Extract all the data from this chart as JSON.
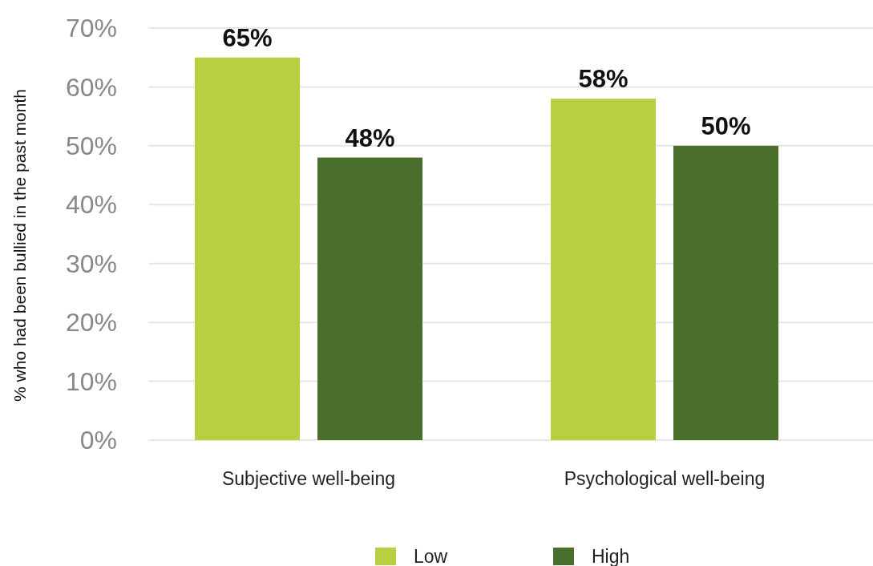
{
  "chart_data": {
    "type": "bar",
    "ylabel": "% who had been bullied in the past month",
    "categories": [
      "Subjective well-being",
      "Psychological well-being"
    ],
    "series": [
      {
        "name": "Low",
        "color": "#b8cf41",
        "values": [
          65,
          58
        ],
        "value_labels": [
          "65%",
          "58%"
        ]
      },
      {
        "name": "High",
        "color": "#4a6e2b",
        "values": [
          48,
          50
        ],
        "value_labels": [
          "48%",
          "50%"
        ]
      }
    ],
    "ylim": [
      0,
      70
    ],
    "yticks": [
      {
        "value": 0,
        "label": "0%"
      },
      {
        "value": 10,
        "label": "10%"
      },
      {
        "value": 20,
        "label": "20%"
      },
      {
        "value": 30,
        "label": "30%"
      },
      {
        "value": 40,
        "label": "40%"
      },
      {
        "value": 50,
        "label": "50%"
      },
      {
        "value": 60,
        "label": "60%"
      },
      {
        "value": 70,
        "label": "70%"
      }
    ],
    "grid": "y",
    "legend": "bottom"
  }
}
